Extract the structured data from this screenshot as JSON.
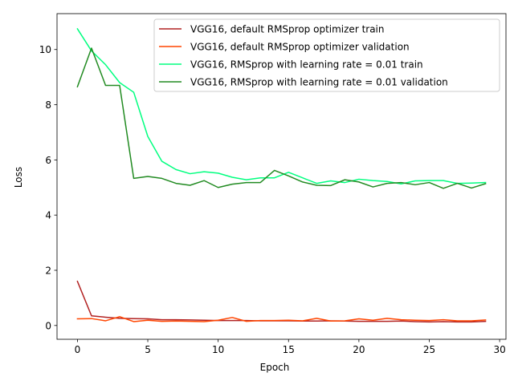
{
  "chart_data": {
    "type": "line",
    "title": "",
    "xlabel": "Epoch",
    "ylabel": "Loss",
    "xlim": [
      -1.45,
      30.45
    ],
    "ylim": [
      -0.5,
      11.3
    ],
    "xticks": [
      0,
      5,
      10,
      15,
      20,
      25,
      30
    ],
    "yticks": [
      0,
      2,
      4,
      6,
      8,
      10
    ],
    "grid": false,
    "legend_position": "top-right",
    "x": [
      0,
      1,
      2,
      3,
      4,
      5,
      6,
      7,
      8,
      9,
      10,
      11,
      12,
      13,
      14,
      15,
      16,
      17,
      18,
      19,
      20,
      21,
      22,
      23,
      24,
      25,
      26,
      27,
      28,
      29
    ],
    "series": [
      {
        "name": "VGG16, default RMSprop optimizer train",
        "color": "#b22222",
        "values": [
          1.6,
          0.35,
          0.3,
          0.26,
          0.25,
          0.24,
          0.21,
          0.21,
          0.2,
          0.19,
          0.18,
          0.18,
          0.18,
          0.17,
          0.17,
          0.17,
          0.16,
          0.16,
          0.17,
          0.16,
          0.15,
          0.15,
          0.15,
          0.16,
          0.14,
          0.13,
          0.14,
          0.13,
          0.13,
          0.15
        ]
      },
      {
        "name": "VGG16, default RMSprop optimizer validation",
        "color": "#ff4500",
        "values": [
          0.24,
          0.25,
          0.17,
          0.32,
          0.14,
          0.19,
          0.15,
          0.16,
          0.15,
          0.14,
          0.19,
          0.29,
          0.15,
          0.18,
          0.18,
          0.19,
          0.17,
          0.26,
          0.16,
          0.17,
          0.24,
          0.19,
          0.26,
          0.21,
          0.19,
          0.18,
          0.21,
          0.17,
          0.17,
          0.2
        ]
      },
      {
        "name": "VGG16, RMSprop with learning rate = 0.01 train",
        "color": "#00ff7f",
        "values": [
          10.75,
          9.95,
          9.45,
          8.8,
          8.45,
          6.85,
          5.95,
          5.65,
          5.5,
          5.57,
          5.52,
          5.37,
          5.28,
          5.35,
          5.35,
          5.55,
          5.35,
          5.15,
          5.24,
          5.18,
          5.3,
          5.25,
          5.22,
          5.13,
          5.24,
          5.25,
          5.25,
          5.15,
          5.16,
          5.18
        ]
      },
      {
        "name": "VGG16, RMSprop with learning rate = 0.01 validation",
        "color": "#228b22",
        "values": [
          8.65,
          10.05,
          8.7,
          8.7,
          5.33,
          5.4,
          5.33,
          5.15,
          5.08,
          5.25,
          5.0,
          5.12,
          5.18,
          5.18,
          5.62,
          5.42,
          5.2,
          5.08,
          5.07,
          5.28,
          5.2,
          5.02,
          5.15,
          5.18,
          5.1,
          5.18,
          4.97,
          5.15,
          4.98,
          5.14
        ]
      }
    ]
  }
}
